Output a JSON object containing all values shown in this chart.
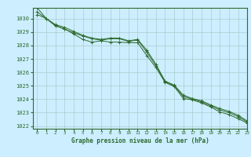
{
  "title": "Graphe pression niveau de la mer (hPa)",
  "background_color": "#cceeff",
  "grid_color": "#aacccc",
  "line_color": "#2d6a2d",
  "spine_color": "#2d6a2d",
  "xlim": [
    -0.5,
    23
  ],
  "ylim": [
    1021.8,
    1030.8
  ],
  "yticks": [
    1022,
    1023,
    1024,
    1025,
    1026,
    1027,
    1028,
    1029,
    1030
  ],
  "xticks": [
    0,
    1,
    2,
    3,
    4,
    5,
    6,
    7,
    8,
    9,
    10,
    11,
    12,
    13,
    14,
    15,
    16,
    17,
    18,
    19,
    20,
    21,
    22,
    23
  ],
  "series1_x": [
    0,
    1,
    2,
    3,
    4,
    5,
    6,
    7,
    8,
    9,
    10,
    11,
    12,
    13,
    14,
    15,
    16,
    17,
    18,
    19,
    20,
    21,
    22,
    23
  ],
  "series1_y": [
    1030.3,
    1030.0,
    1029.5,
    1029.2,
    1028.95,
    1028.7,
    1028.5,
    1028.4,
    1028.5,
    1028.5,
    1028.3,
    1028.4,
    1027.5,
    1026.5,
    1025.3,
    1025.0,
    1024.2,
    1024.0,
    1023.8,
    1023.5,
    1023.2,
    1023.0,
    1022.7,
    1022.3
  ],
  "series2_x": [
    0,
    1,
    2,
    3,
    4,
    5,
    6,
    7,
    8,
    9,
    10,
    11,
    12,
    13,
    14,
    15,
    16,
    17,
    18,
    19,
    20,
    21,
    22,
    23
  ],
  "series2_y": [
    1030.5,
    1030.0,
    1029.45,
    1029.25,
    1028.85,
    1028.45,
    1028.25,
    1028.35,
    1028.25,
    1028.25,
    1028.2,
    1028.2,
    1027.25,
    1026.35,
    1025.25,
    1024.95,
    1024.05,
    1023.95,
    1023.72,
    1023.42,
    1023.05,
    1022.85,
    1022.55,
    1022.22
  ],
  "series3_x": [
    0,
    1,
    2,
    3,
    4,
    5,
    6,
    7,
    8,
    9,
    10,
    11,
    12,
    13,
    14,
    15,
    16,
    17,
    18,
    19,
    20,
    21,
    22,
    23
  ],
  "series3_y": [
    1030.8,
    1030.0,
    1029.55,
    1029.35,
    1029.05,
    1028.75,
    1028.55,
    1028.45,
    1028.55,
    1028.55,
    1028.35,
    1028.45,
    1027.65,
    1026.6,
    1025.35,
    1025.05,
    1024.3,
    1024.05,
    1023.88,
    1023.58,
    1023.3,
    1023.1,
    1022.8,
    1022.38
  ]
}
